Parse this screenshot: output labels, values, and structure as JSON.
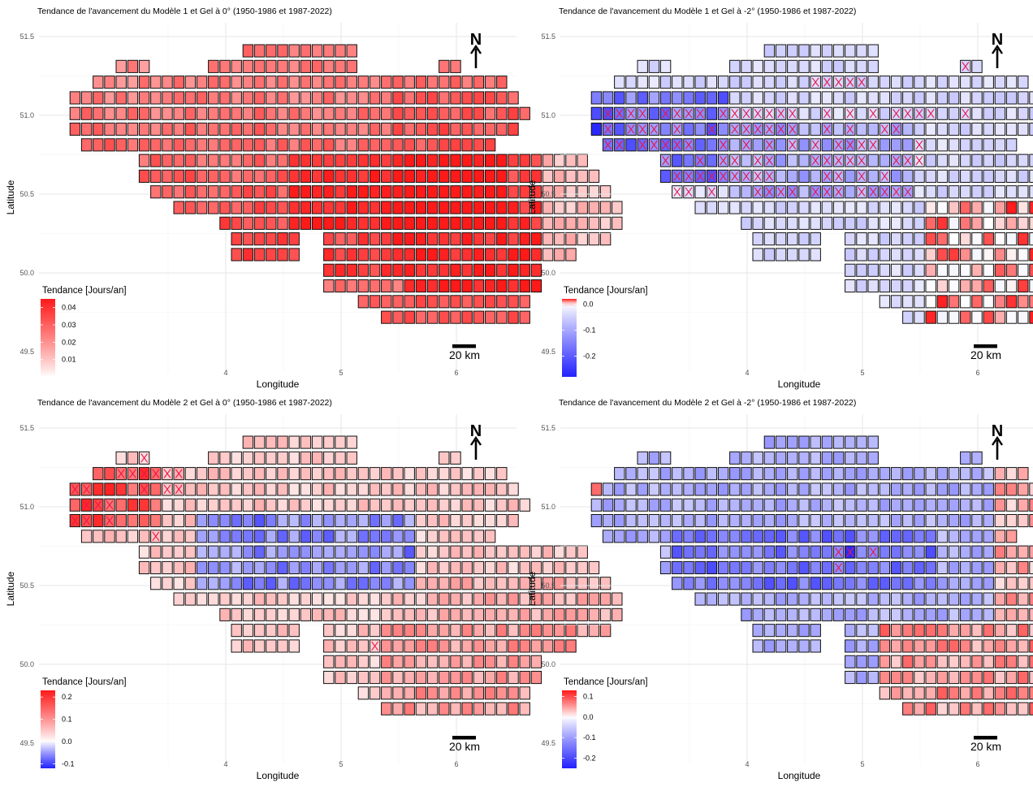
{
  "axis": {
    "x_label": "Longitude",
    "y_label": "Latitude",
    "x_ticks": [
      "4",
      "5",
      "6"
    ],
    "y_ticks": [
      "51.5",
      "51.0",
      "50.5",
      "50.0",
      "49.5"
    ]
  },
  "north_arrow": "N",
  "scale_bar_label": "20 km",
  "colors": {
    "positive": "#ff1a1a",
    "negative": "#2222ff",
    "neutral": "#ffffff",
    "cross": "#e8174a"
  },
  "chart_data": [
    {
      "type": "heatmap",
      "title": "Tendance de l'avancement du  Modèle 1 et Gel à 0° (1950-1986 et 1987-2022)",
      "legend_title": "Tendance [Jours/an]",
      "legend_ticks": [
        {
          "value": 0.04,
          "label": "0.04"
        },
        {
          "value": 0.03,
          "label": "0.03"
        },
        {
          "value": 0.02,
          "label": "0.02"
        },
        {
          "value": 0.01,
          "label": "0.01"
        }
      ],
      "range": [
        0,
        0.045
      ],
      "pattern": "m1g0",
      "xlim": [
        3.05,
        6.5
      ],
      "ylim": [
        49.45,
        51.6
      ]
    },
    {
      "type": "heatmap",
      "title": "Tendance de l'avancement du  Modèle 1 et Gel à -2° (1950-1986 et 1987-2022)",
      "legend_title": "Tendance [Jours/an]",
      "legend_ticks": [
        {
          "value": 0.0,
          "label": "0.0"
        },
        {
          "value": -0.1,
          "label": "-0.1"
        },
        {
          "value": -0.2,
          "label": "-0.2"
        }
      ],
      "range": [
        -0.28,
        0.02
      ],
      "pattern": "m1g2",
      "xlim": [
        3.05,
        6.5
      ],
      "ylim": [
        49.45,
        51.6
      ]
    },
    {
      "type": "heatmap",
      "title": "Tendance de l'avancement du Modèle 2 et Gel à 0° (1950-1986 et 1987-2022)",
      "legend_title": "Tendance [Jours/an]",
      "legend_ticks": [
        {
          "value": 0.2,
          "label": "0.2"
        },
        {
          "value": 0.1,
          "label": "0.1"
        },
        {
          "value": 0.0,
          "label": "0.0"
        },
        {
          "value": -0.1,
          "label": "-0.1"
        }
      ],
      "range": [
        -0.12,
        0.23
      ],
      "pattern": "m2g0",
      "xlim": [
        3.05,
        6.5
      ],
      "ylim": [
        49.45,
        51.6
      ]
    },
    {
      "type": "heatmap",
      "title": "Tendance de l'avancement du Modèle 2 et Gel à -2° (1950-1986 et 1987-2022)",
      "legend_title": "Tendance [Jours/an]",
      "legend_ticks": [
        {
          "value": 0.1,
          "label": "0.1"
        },
        {
          "value": 0.0,
          "label": "0.0"
        },
        {
          "value": -0.1,
          "label": "-0.1"
        },
        {
          "value": -0.2,
          "label": "-0.2"
        }
      ],
      "range": [
        -0.25,
        0.13
      ],
      "pattern": "m2g2",
      "xlim": [
        3.05,
        6.5
      ],
      "ylim": [
        49.45,
        51.6
      ]
    }
  ]
}
